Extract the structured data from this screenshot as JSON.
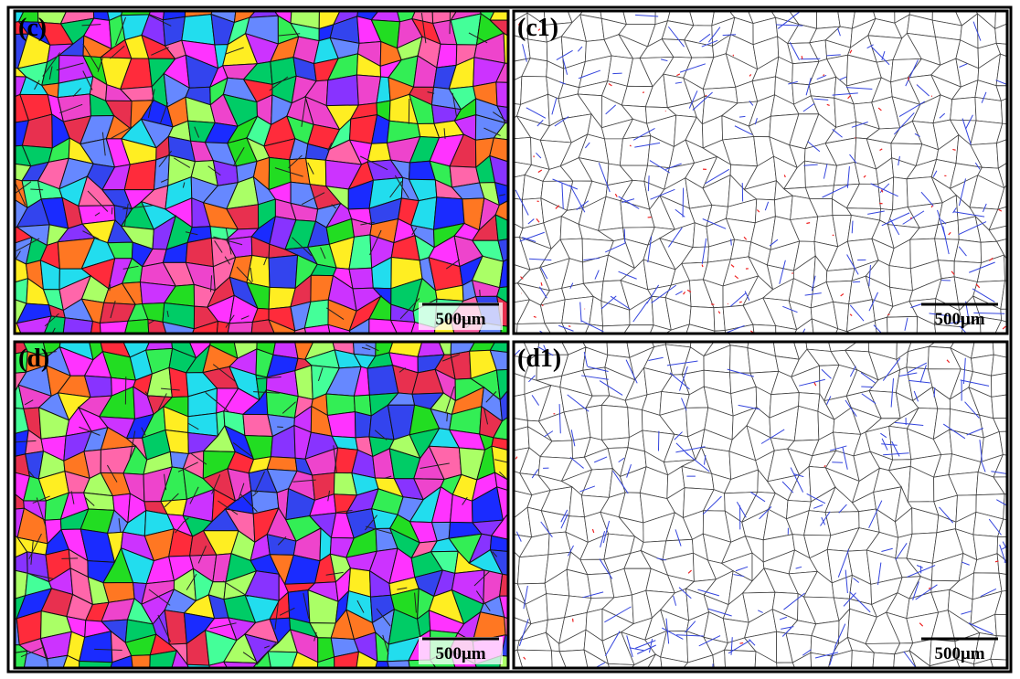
{
  "panels": [
    {
      "label": "(c)",
      "scale_bar": "500μm"
    },
    {
      "label": "(c1)",
      "scale_bar": "500μm"
    },
    {
      "label": "(d)",
      "scale_bar": "500μm"
    },
    {
      "label": "(d1)",
      "scale_bar": "500μm"
    }
  ]
}
